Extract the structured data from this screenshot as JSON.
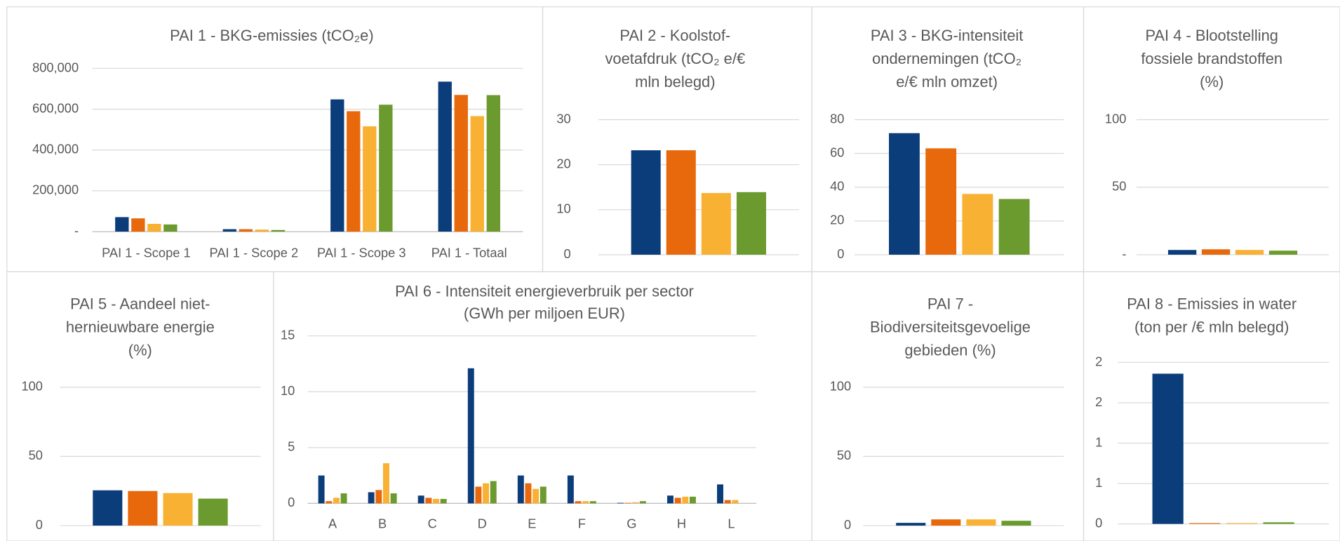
{
  "chart_data": [
    {
      "type": "bar",
      "title": [
        "PAI 1 - BKG-emissies (tCO₂e)"
      ],
      "categories": [
        "PAI 1 - Scope 1",
        "PAI 1 - Scope 2",
        "PAI 1 - Scope 3",
        "PAI 1 - Totaal"
      ],
      "series": [
        {
          "color": "#0b3d7b",
          "values": [
            71000,
            12000,
            648000,
            735000
          ]
        },
        {
          "color": "#e8690c",
          "values": [
            65000,
            12000,
            590000,
            670000
          ]
        },
        {
          "color": "#f8b133",
          "values": [
            38000,
            10000,
            516000,
            566000
          ]
        },
        {
          "color": "#6b9a2e",
          "values": [
            35000,
            8000,
            622000,
            669000
          ]
        }
      ],
      "ylim": [
        0,
        800000
      ],
      "yticks": [
        {
          "value": 0,
          "label": "-"
        },
        {
          "value": 200000,
          "label": "200,000"
        },
        {
          "value": 400000,
          "label": "400,000"
        },
        {
          "value": 600000,
          "label": "600,000"
        },
        {
          "value": 800000,
          "label": "800,000"
        }
      ],
      "grid": true
    },
    {
      "type": "bar",
      "title": [
        "PAI 2 - Koolstof-",
        "voetafdruk (tCO₂ e/€",
        "mln belegd)"
      ],
      "categories": [
        null
      ],
      "series": [
        {
          "color": "#0b3d7b",
          "values": [
            23.2
          ]
        },
        {
          "color": "#e8690c",
          "values": [
            23.2
          ]
        },
        {
          "color": "#f8b133",
          "values": [
            13.7
          ]
        },
        {
          "color": "#6b9a2e",
          "values": [
            13.9
          ]
        }
      ],
      "ylim": [
        0,
        30
      ],
      "yticks": [
        0,
        10,
        20,
        30
      ],
      "grid": true
    },
    {
      "type": "bar",
      "title": [
        "PAI 3 - BKG-intensiteit",
        "ondernemingen (tCO₂",
        "e/€ mln omzet)"
      ],
      "categories": [
        null
      ],
      "series": [
        {
          "color": "#0b3d7b",
          "values": [
            72
          ]
        },
        {
          "color": "#e8690c",
          "values": [
            63
          ]
        },
        {
          "color": "#f8b133",
          "values": [
            36
          ]
        },
        {
          "color": "#6b9a2e",
          "values": [
            33
          ]
        }
      ],
      "ylim": [
        0,
        80
      ],
      "yticks": [
        0,
        20,
        40,
        60,
        80
      ],
      "grid": true
    },
    {
      "type": "bar",
      "title": [
        "PAI 4 - Blootstelling",
        "fossiele brandstoffen",
        "(%)"
      ],
      "categories": [
        null
      ],
      "series": [
        {
          "color": "#0b3d7b",
          "values": [
            3.5
          ]
        },
        {
          "color": "#e8690c",
          "values": [
            4
          ]
        },
        {
          "color": "#f8b133",
          "values": [
            3.5
          ]
        },
        {
          "color": "#6b9a2e",
          "values": [
            3
          ]
        }
      ],
      "ylim": [
        0,
        100
      ],
      "yticks": [
        {
          "value": 0,
          "label": "-"
        },
        50,
        100
      ],
      "grid": true
    },
    {
      "type": "bar",
      "title": [
        "PAI 5 - Aandeel niet-",
        "hernieuwbare energie",
        "(%)"
      ],
      "categories": [
        null
      ],
      "series": [
        {
          "color": "#0b3d7b",
          "values": [
            25.5
          ]
        },
        {
          "color": "#e8690c",
          "values": [
            25
          ]
        },
        {
          "color": "#f8b133",
          "values": [
            23.5
          ]
        },
        {
          "color": "#6b9a2e",
          "values": [
            19.5
          ]
        }
      ],
      "ylim": [
        0,
        100
      ],
      "yticks": [
        0,
        50,
        100
      ],
      "grid": true
    },
    {
      "type": "bar",
      "title": [
        "PAI 6 - Intensiteit energieverbruik per sector",
        "(GWh per miljoen EUR)"
      ],
      "categories": [
        "A",
        "B",
        "C",
        "D",
        "E",
        "F",
        "G",
        "H",
        "L"
      ],
      "series": [
        {
          "color": "#0b3d7b",
          "values": [
            2.5,
            1.0,
            0.7,
            12.1,
            2.5,
            2.5,
            0.05,
            0.7,
            1.7
          ]
        },
        {
          "color": "#e8690c",
          "values": [
            0.2,
            1.2,
            0.5,
            1.5,
            1.8,
            0.2,
            0.05,
            0.5,
            0.3
          ]
        },
        {
          "color": "#f8b133",
          "values": [
            0.5,
            3.6,
            0.4,
            1.8,
            1.3,
            0.2,
            0.1,
            0.6,
            0.3
          ]
        },
        {
          "color": "#6b9a2e",
          "values": [
            0.9,
            0.9,
            0.4,
            2.0,
            1.5,
            0.2,
            0.2,
            0.6,
            0
          ]
        }
      ],
      "ylim": [
        0,
        15
      ],
      "yticks": [
        0,
        5,
        10,
        15
      ],
      "grid": true
    },
    {
      "type": "bar",
      "title": [
        "PAI 7 -",
        "Biodiversiteitsgevoelige",
        "gebieden (%)"
      ],
      "categories": [
        null
      ],
      "series": [
        {
          "color": "#0b3d7b",
          "values": [
            2
          ]
        },
        {
          "color": "#e8690c",
          "values": [
            4.5
          ]
        },
        {
          "color": "#f8b133",
          "values": [
            4.5
          ]
        },
        {
          "color": "#6b9a2e",
          "values": [
            3.5
          ]
        }
      ],
      "ylim": [
        0,
        100
      ],
      "yticks": [
        0,
        50,
        100
      ],
      "grid": true
    },
    {
      "type": "bar",
      "title": [
        "PAI 8 - Emissies in water",
        "(ton per /€ mln belegd)"
      ],
      "categories": [
        null
      ],
      "series": [
        {
          "color": "#0b3d7b",
          "values": [
            1.86
          ]
        },
        {
          "color": "#e8690c",
          "values": [
            0.01
          ]
        },
        {
          "color": "#f8b133",
          "values": [
            0.01
          ]
        },
        {
          "color": "#6b9a2e",
          "values": [
            0.02
          ]
        }
      ],
      "ylim": [
        0,
        2
      ],
      "yticks": [
        0,
        {
          "value": 0.5,
          "label": "1"
        },
        1,
        {
          "value": 1.5,
          "label": "2"
        },
        2
      ],
      "grid": true
    }
  ]
}
